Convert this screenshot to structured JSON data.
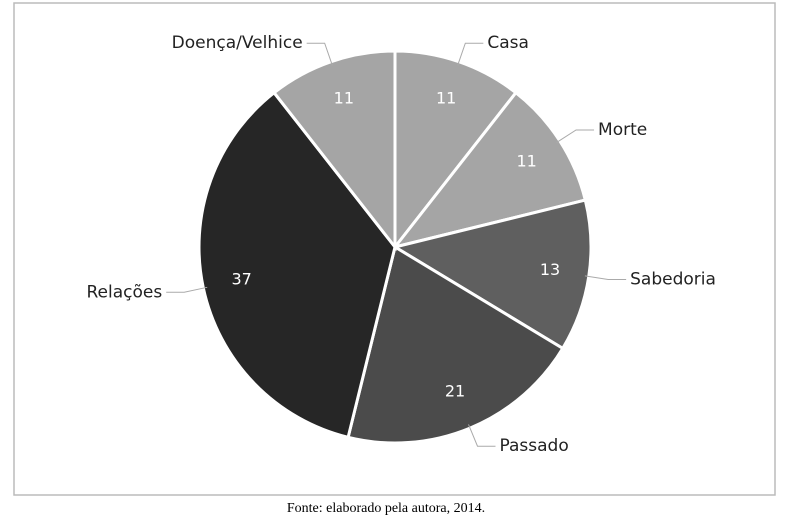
{
  "chart_data": {
    "type": "pie",
    "categories": [
      "Casa",
      "Morte",
      "Sabedoria",
      "Passado",
      "Relações",
      "Doença/Velhice"
    ],
    "values": [
      11,
      11,
      13,
      21,
      37,
      11
    ],
    "colors": [
      "#a5a5a5",
      "#a5a5a5",
      "#5f5f5f",
      "#4b4b4b",
      "#262626",
      "#a5a5a5"
    ]
  },
  "caption": "Fonte: elaborado pela autora, 2014."
}
